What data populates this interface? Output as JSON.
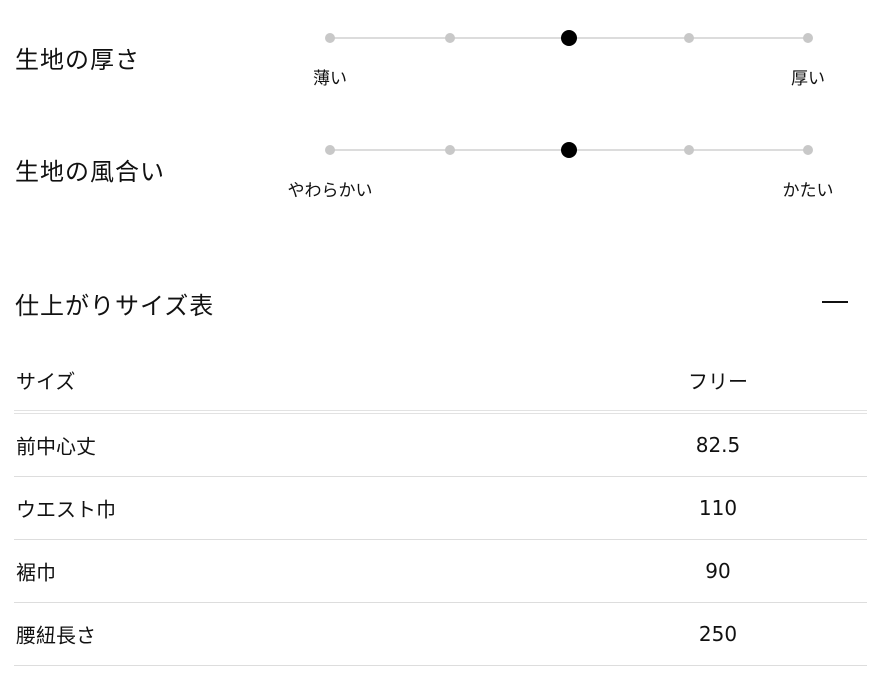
{
  "attributes": [
    {
      "title": "生地の厚さ",
      "left_label": "薄い",
      "right_label": "厚い",
      "steps": 5,
      "selected_index": 2
    },
    {
      "title": "生地の風合い",
      "left_label": "やわらかい",
      "right_label": "かたい",
      "steps": 5,
      "selected_index": 2
    }
  ],
  "size_table": {
    "title": "仕上がりサイズ表",
    "collapse_icon": "minus-icon",
    "header": {
      "label": "サイズ",
      "value": "フリー"
    },
    "rows": [
      {
        "label": "前中心丈",
        "value": "82.5"
      },
      {
        "label": "ウエスト巾",
        "value": "110"
      },
      {
        "label": "裾巾",
        "value": "90"
      },
      {
        "label": "腰紐長さ",
        "value": "250"
      }
    ]
  }
}
